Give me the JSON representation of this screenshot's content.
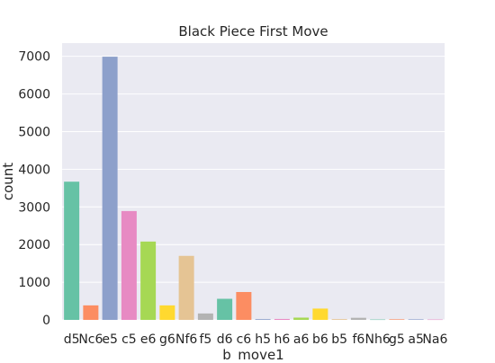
{
  "chart_data": {
    "type": "bar",
    "title": "Black Piece First Move",
    "xlabel": "b_move1",
    "ylabel": "count",
    "ylim": [
      0,
      7350
    ],
    "yticks": [
      0,
      1000,
      2000,
      3000,
      4000,
      5000,
      6000,
      7000
    ],
    "grid": true,
    "legend": "none",
    "categories": [
      "d5",
      "Nc6",
      "e5",
      "c5",
      "e6",
      "g6",
      "Nf6",
      "f5",
      "d6",
      "c6",
      "h5",
      "h6",
      "a6",
      "b6",
      "b5",
      "f6",
      "Nh6",
      "g5",
      "a5",
      "Na6"
    ],
    "values": [
      3670,
      385,
      6990,
      2890,
      2080,
      385,
      1700,
      170,
      560,
      740,
      20,
      25,
      60,
      300,
      20,
      55,
      10,
      15,
      15,
      10
    ],
    "colors": [
      "#66c2a5",
      "#fc8d62",
      "#8da0cb",
      "#e78ac3",
      "#a6d854",
      "#ffd92f",
      "#e5c494",
      "#b3b3b3",
      "#66c2a5",
      "#fc8d62",
      "#8da0cb",
      "#e78ac3",
      "#a6d854",
      "#ffd92f",
      "#e5c494",
      "#b3b3b3",
      "#66c2a5",
      "#fc8d62",
      "#8da0cb",
      "#e78ac3"
    ],
    "plot_background": "#eaeaf2",
    "grid_color": "#ffffff"
  }
}
